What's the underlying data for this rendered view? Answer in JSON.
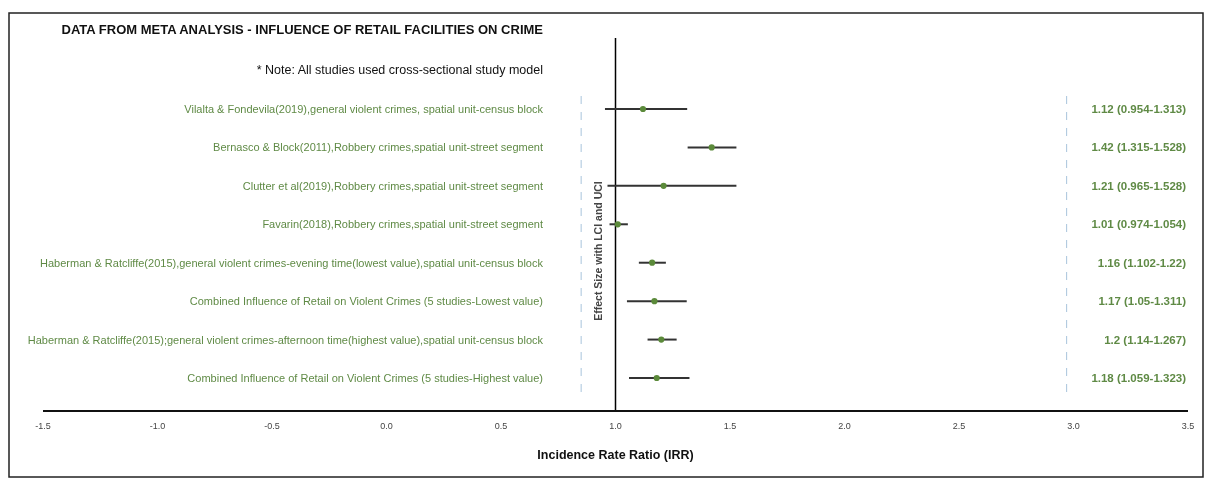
{
  "chart_data": {
    "type": "scatter",
    "orientation": "horizontal",
    "title": "DATA FROM META ANALYSIS - INFLUENCE OF RETAIL FACILITIES ON CRIME",
    "subtitle": "* Note: All studies used cross-sectional study model",
    "xlabel": "Incidence Rate Ratio (IRR)",
    "ylabel": "Effect Size with LCI and UCI",
    "categories": [
      "Vilalta & Fondevila(2019),general violent crimes, spatial unit-census block",
      "Bernasco & Block(2011),Robbery crimes,spatial unit-street segment",
      "Clutter et al(2019),Robbery crimes,spatial unit-street segment",
      "Favarin(2018),Robbery crimes,spatial unit-street segment",
      "Haberman & Ratcliffe(2015),general violent crimes-evening time(lowest value),spatial unit-census block",
      "Combined Influence of Retail on Violent Crimes (5 studies-Lowest value)",
      "Haberman & Ratcliffe(2015);general violent crimes-afternoon time(highest value),spatial unit-census block",
      "Combined Influence of Retail on Violent Crimes (5 studies-Highest value)"
    ],
    "values": [
      1.12,
      1.42,
      1.21,
      1.01,
      1.16,
      1.17,
      1.2,
      1.18
    ],
    "errors": [
      [
        0.954,
        1.313
      ],
      [
        1.315,
        1.528
      ],
      [
        0.965,
        1.528
      ],
      [
        0.974,
        1.054
      ],
      [
        1.102,
        1.22
      ],
      [
        1.05,
        1.311
      ],
      [
        1.14,
        1.267
      ],
      [
        1.059,
        1.323
      ]
    ],
    "annotations": [
      "1.12 (0.954-1.313)",
      "1.42 (1.315-1.528)",
      "1.21 (0.965-1.528)",
      "1.01 (0.974-1.054)",
      "1.16 (1.102-1.22)",
      "1.17 (1.05-1.311)",
      "1.2 (1.14-1.267)",
      "1.18 (1.059-1.323)"
    ],
    "color": "#5b8a3a",
    "marker": "circle",
    "xlim": [
      -1.5,
      3.5
    ],
    "xticks": [
      {
        "value": -1.5,
        "label": "-1.5"
      },
      {
        "value": -1,
        "label": "-1.0"
      },
      {
        "value": -0.5,
        "label": "-0.5"
      },
      {
        "value": 0,
        "label": "0.0"
      },
      {
        "value": 0.5,
        "label": "0.5"
      },
      {
        "value": 1,
        "label": "1.0"
      },
      {
        "value": 1.5,
        "label": "1.5"
      },
      {
        "value": 2,
        "label": "2.0"
      },
      {
        "value": 2.5,
        "label": "2.5"
      },
      {
        "value": 3,
        "label": "3.0"
      },
      {
        "value": 3.5,
        "label": "3.5"
      }
    ],
    "ref_lines": [
      {
        "axis": "x",
        "value": 1,
        "color": "#000000",
        "line_style": "solid"
      },
      {
        "axis": "x",
        "value": 0.85,
        "color": "#a9c4dc",
        "line_style": "dashed"
      },
      {
        "axis": "x",
        "value": 2.97,
        "color": "#a9c4dc",
        "line_style": "dashed"
      }
    ],
    "grid": false
  }
}
